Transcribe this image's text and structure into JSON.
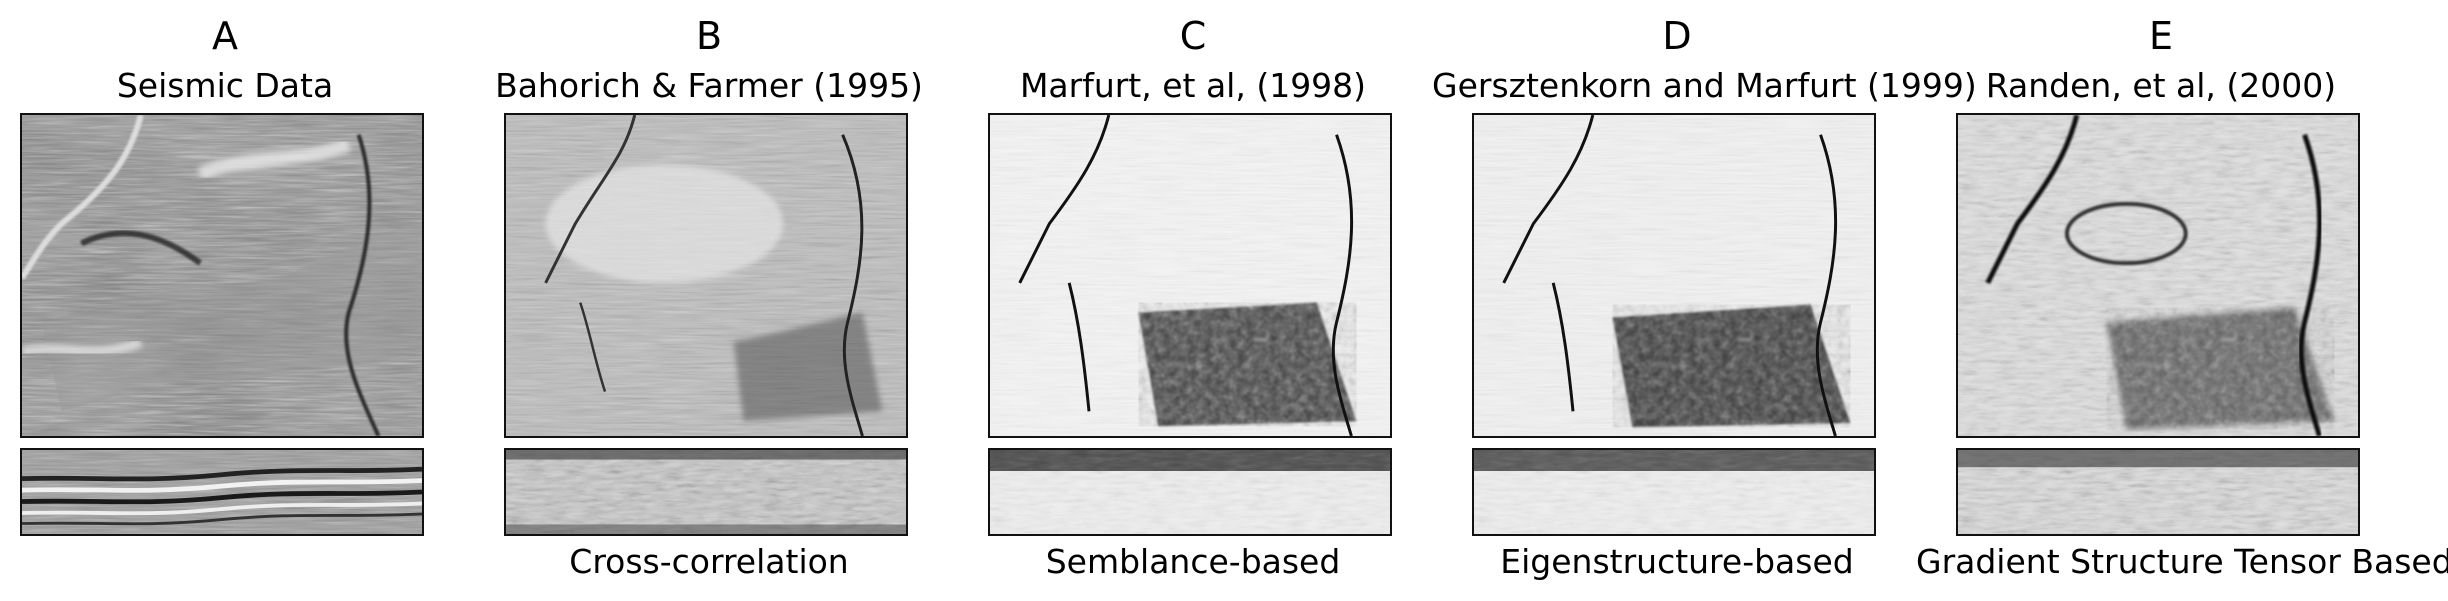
{
  "panels": [
    {
      "letter": "A",
      "title": "Seismic Data",
      "method": ""
    },
    {
      "letter": "B",
      "title": "Bahorich & Farmer (1995)",
      "method": "Cross-correlation"
    },
    {
      "letter": "C",
      "title": "Marfurt, et al, (1998)",
      "method": "Semblance-based"
    },
    {
      "letter": "D",
      "title": "Gersztenkorn and Marfurt (1999)",
      "method": "Eigenstructure-based"
    },
    {
      "letter": "E",
      "title": "Randen, et al, (2000)",
      "method": "Gradient Structure Tensor Based"
    }
  ]
}
